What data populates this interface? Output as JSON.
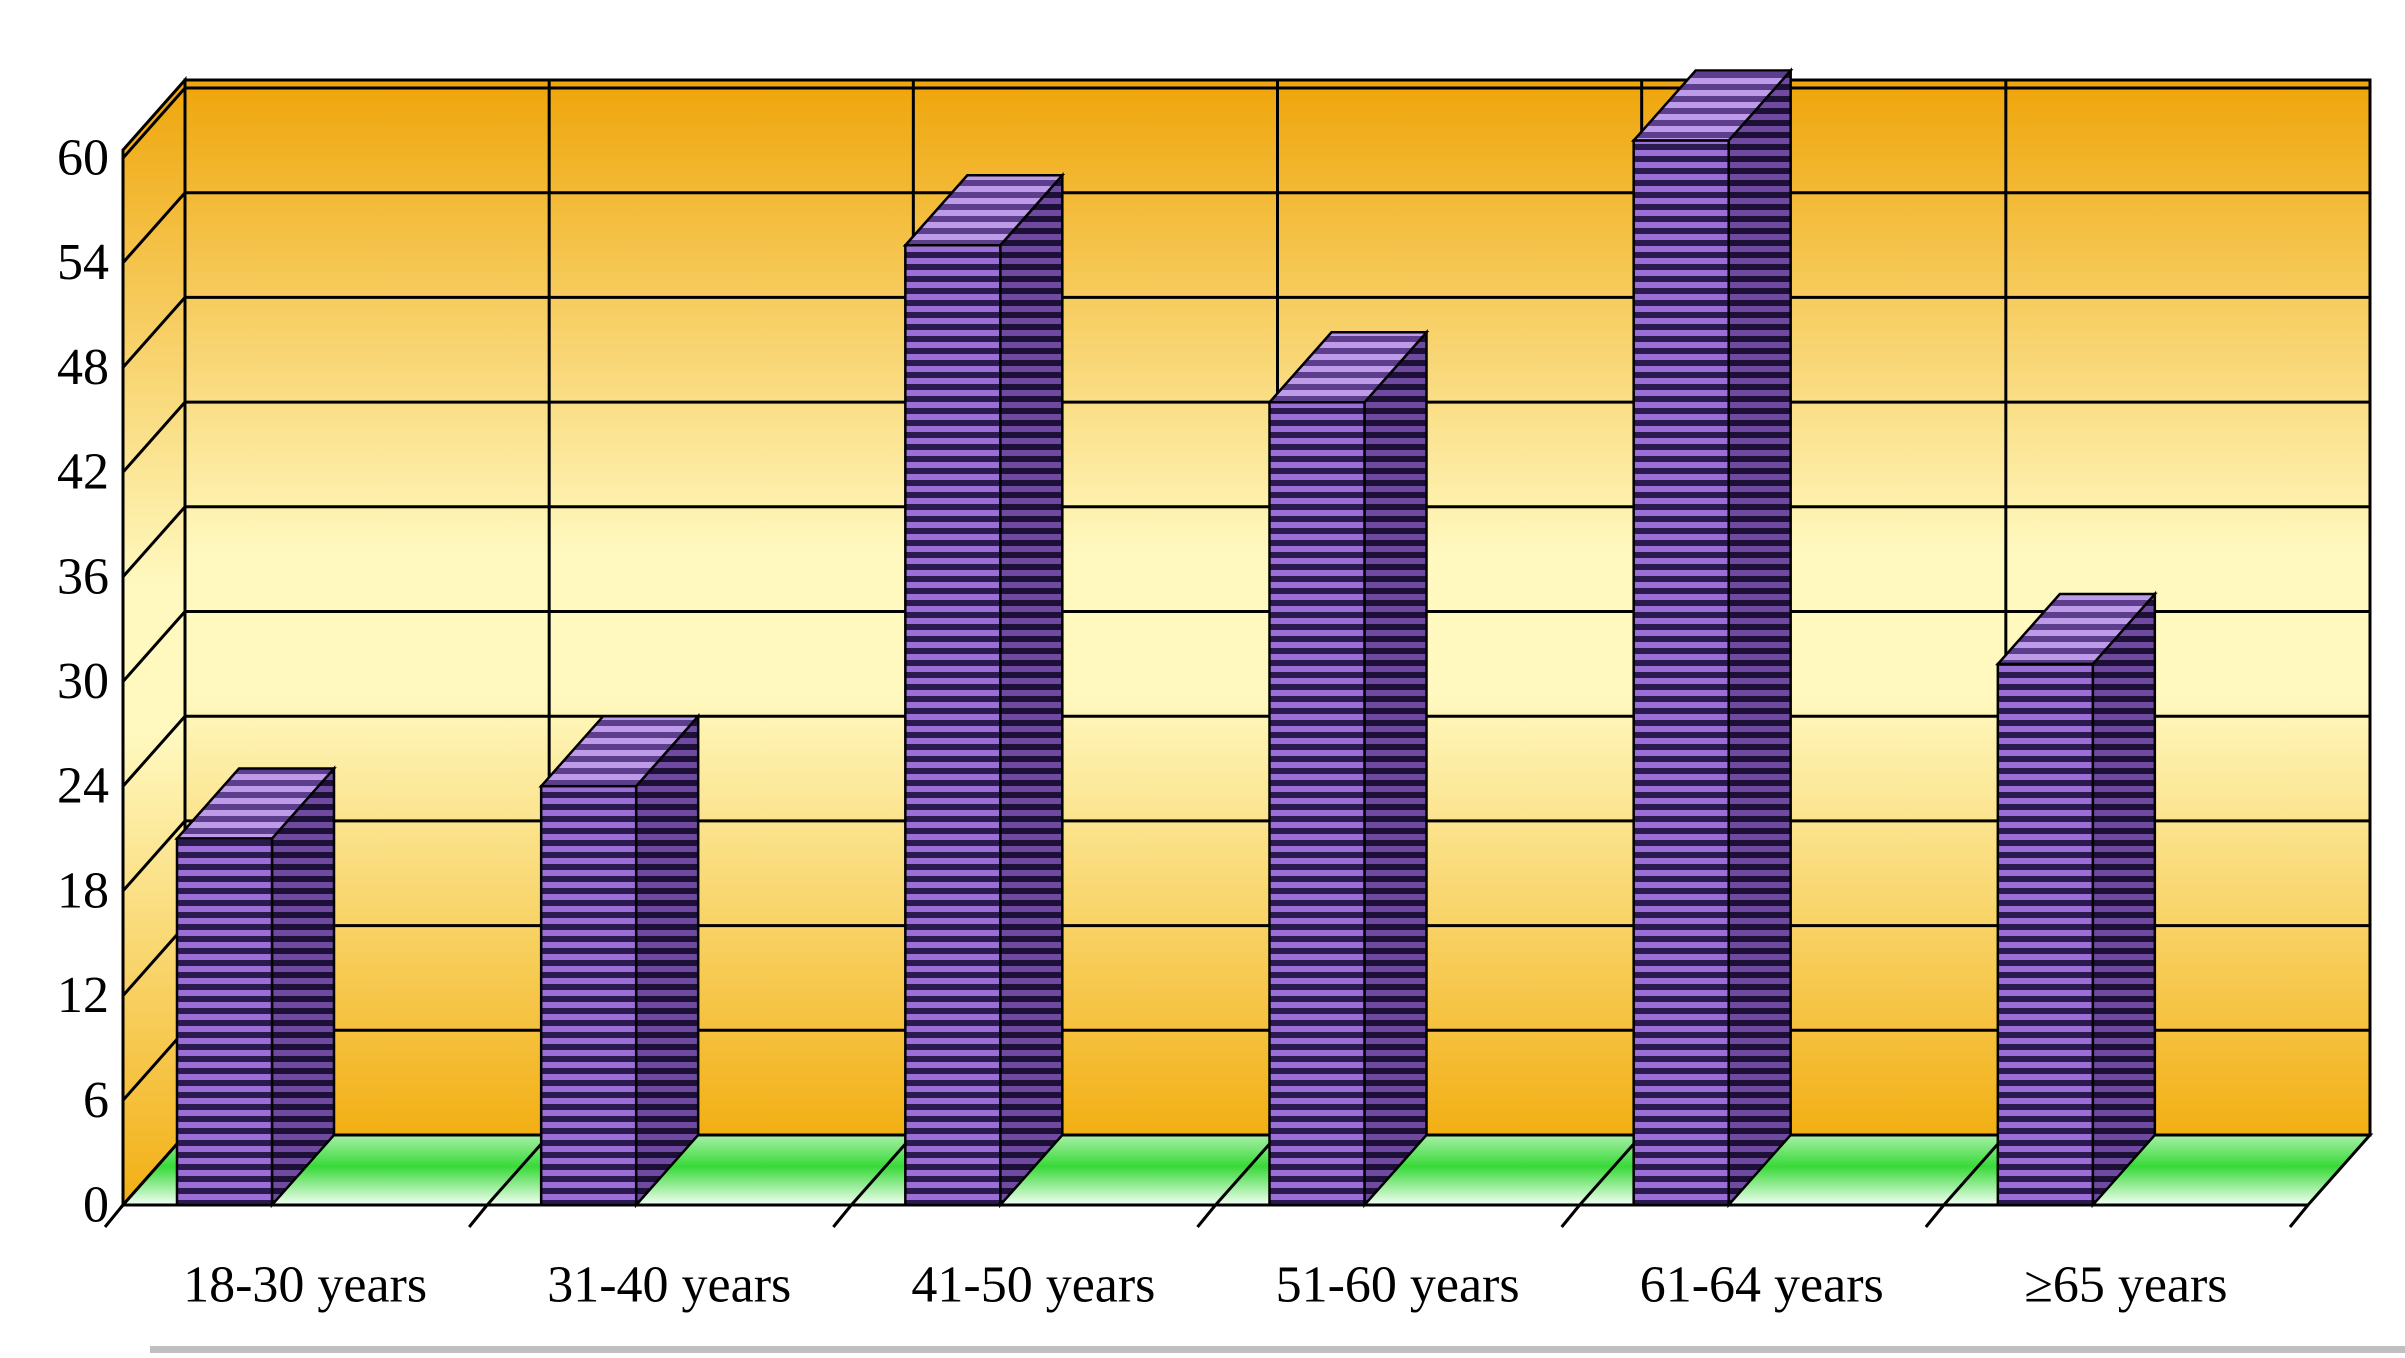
{
  "chart_data": {
    "type": "bar",
    "variant": "3d-column",
    "title": "",
    "xlabel": "",
    "ylabel": "",
    "categories": [
      "18-30 years",
      "31-40 years",
      "41-50 years",
      "51-60 years",
      "61-64 years",
      "≥65 years"
    ],
    "values": [
      21,
      24,
      55,
      46,
      61,
      31
    ],
    "yticks": [
      0,
      6,
      12,
      18,
      24,
      30,
      36,
      42,
      48,
      54,
      60
    ],
    "ylim": [
      0,
      63
    ],
    "grid": true,
    "legend": false,
    "style": {
      "bar_front_dark": "#2B1A4D",
      "bar_front_light": "#9C6FD8",
      "bar_side_dark": "#1C1036",
      "bar_side_light": "#6F4AA0",
      "bar_top_dark": "#5C3E8C",
      "bar_top_light": "#BD9BE8",
      "wall_top": "#EFA50A",
      "wall_mid": "#FFF9C0",
      "wall_bottom": "#F2AF14",
      "floor_back": "#A8F0A8",
      "floor_mid": "#39D939",
      "floor_front": "#F4FFF4",
      "line": "#000000",
      "background": "#FFFFFF",
      "bottom_shadow": "#8A8A8A"
    }
  }
}
